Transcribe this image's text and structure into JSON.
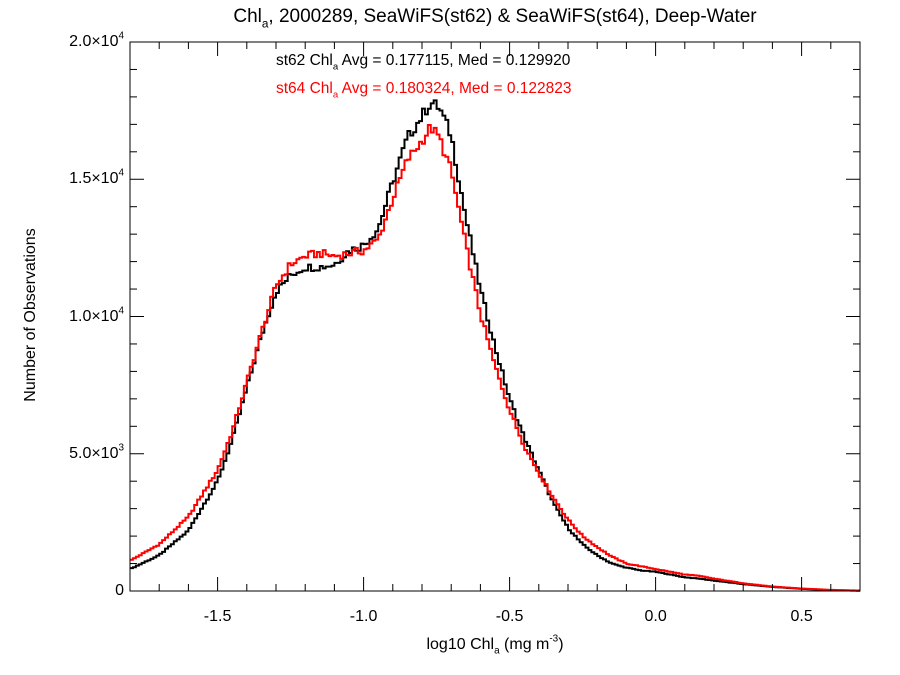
{
  "chart_data": {
    "type": "line",
    "title_parts": [
      "Chl",
      "a",
      ", 2000289, SeaWiFS(st62) & SeaWiFS(st64), Deep-Water"
    ],
    "xlabel_parts": [
      "log10 Chl",
      "a",
      " (mg m",
      "-3",
      ")"
    ],
    "ylabel": "Number of Observations",
    "xlim": [
      -1.8,
      0.7
    ],
    "ylim": [
      0,
      20000
    ],
    "x_ticks": [
      {
        "value": -1.5,
        "label": "-1.5"
      },
      {
        "value": -1.0,
        "label": "-1.0"
      },
      {
        "value": -0.5,
        "label": "-0.5"
      },
      {
        "value": 0.0,
        "label": "0.0"
      },
      {
        "value": 0.5,
        "label": "0.5"
      }
    ],
    "y_ticks": [
      {
        "value": 0,
        "mant": "0",
        "exp": ""
      },
      {
        "value": 5000,
        "mant": "5.0×10",
        "exp": "3"
      },
      {
        "value": 10000,
        "mant": "1.0×10",
        "exp": "4"
      },
      {
        "value": 15000,
        "mant": "1.5×10",
        "exp": "4"
      },
      {
        "value": 20000,
        "mant": "2.0×10",
        "exp": "4"
      }
    ],
    "annotations": [
      {
        "prefix": "st62 Chl",
        "sub": "a",
        "suffix": " Avg = 0.177115, Med = 0.129920",
        "color": "#000000"
      },
      {
        "prefix": "st64 Chl",
        "sub": "a",
        "suffix": " Avg = 0.180324, Med = 0.122823",
        "color": "#ff0000"
      }
    ],
    "grid": false,
    "series": [
      {
        "color": "#000000",
        "x": [
          -1.8,
          -1.7,
          -1.6,
          -1.5,
          -1.45,
          -1.4,
          -1.35,
          -1.3,
          -1.25,
          -1.2,
          -1.15,
          -1.1,
          -1.05,
          -1.0,
          -0.95,
          -0.9,
          -0.85,
          -0.8,
          -0.77,
          -0.74,
          -0.7,
          -0.65,
          -0.6,
          -0.55,
          -0.5,
          -0.45,
          -0.4,
          -0.35,
          -0.3,
          -0.25,
          -0.2,
          -0.15,
          -0.1,
          -0.05,
          0.0,
          0.05,
          0.1,
          0.15,
          0.2,
          0.3,
          0.4,
          0.5,
          0.6,
          0.7
        ],
        "y": [
          800,
          1300,
          2200,
          4000,
          5500,
          7400,
          9300,
          10900,
          11500,
          11800,
          11800,
          11900,
          12400,
          12600,
          13200,
          14900,
          16500,
          17300,
          17800,
          17600,
          16600,
          13600,
          11000,
          8900,
          7000,
          5600,
          4400,
          3200,
          2300,
          1700,
          1300,
          1000,
          850,
          750,
          700,
          600,
          500,
          450,
          380,
          250,
          150,
          80,
          30,
          10
        ]
      },
      {
        "color": "#ff0000",
        "x": [
          -1.8,
          -1.7,
          -1.6,
          -1.5,
          -1.45,
          -1.4,
          -1.35,
          -1.3,
          -1.25,
          -1.2,
          -1.15,
          -1.1,
          -1.05,
          -1.0,
          -0.95,
          -0.9,
          -0.85,
          -0.8,
          -0.77,
          -0.74,
          -0.7,
          -0.65,
          -0.6,
          -0.55,
          -0.5,
          -0.45,
          -0.4,
          -0.35,
          -0.3,
          -0.25,
          -0.2,
          -0.15,
          -0.1,
          -0.05,
          0.0,
          0.05,
          0.1,
          0.15,
          0.2,
          0.3,
          0.4,
          0.5,
          0.6,
          0.7
        ],
        "y": [
          1100,
          1700,
          2700,
          4400,
          5800,
          7600,
          9400,
          11100,
          11900,
          12200,
          12300,
          12200,
          12300,
          12400,
          12800,
          14300,
          15700,
          16400,
          16900,
          16500,
          15300,
          12600,
          10100,
          8200,
          6600,
          5300,
          4300,
          3400,
          2600,
          2000,
          1600,
          1250,
          1000,
          900,
          800,
          700,
          600,
          550,
          450,
          280,
          160,
          90,
          40,
          15
        ]
      }
    ]
  }
}
